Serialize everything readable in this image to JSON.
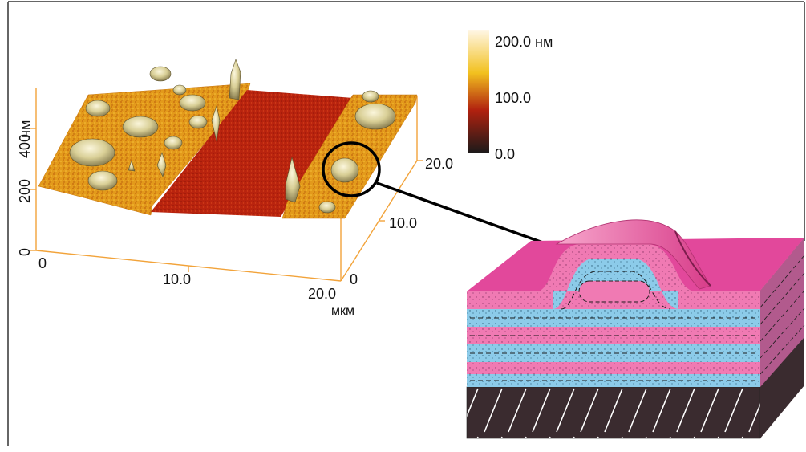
{
  "afm_plot": {
    "z_axis": {
      "label": "нм",
      "ticks": [
        "0",
        "200",
        "400"
      ]
    },
    "x_axis": {
      "ticks": [
        "0",
        "10.0",
        "20.0"
      ]
    },
    "y_axis": {
      "ticks": [
        "0",
        "10.0",
        "20.0"
      ],
      "unit": "мкм"
    }
  },
  "colorbar": {
    "labels": [
      "200.0 нм",
      "100.0",
      "0.0"
    ],
    "colors": [
      "#fff7e6",
      "#f2c11f",
      "#b1210f",
      "#1a1a1a"
    ]
  },
  "schematic": {
    "layer_colors": {
      "pink": "#e95aa4",
      "blue": "#86c8e8",
      "substrate": "#3a2b2f",
      "top": "#e2489b",
      "ridge": "#f48fc1"
    }
  },
  "colors": {
    "frame": "#333333",
    "axis": "#f2a33a",
    "arrow": "#000000"
  }
}
